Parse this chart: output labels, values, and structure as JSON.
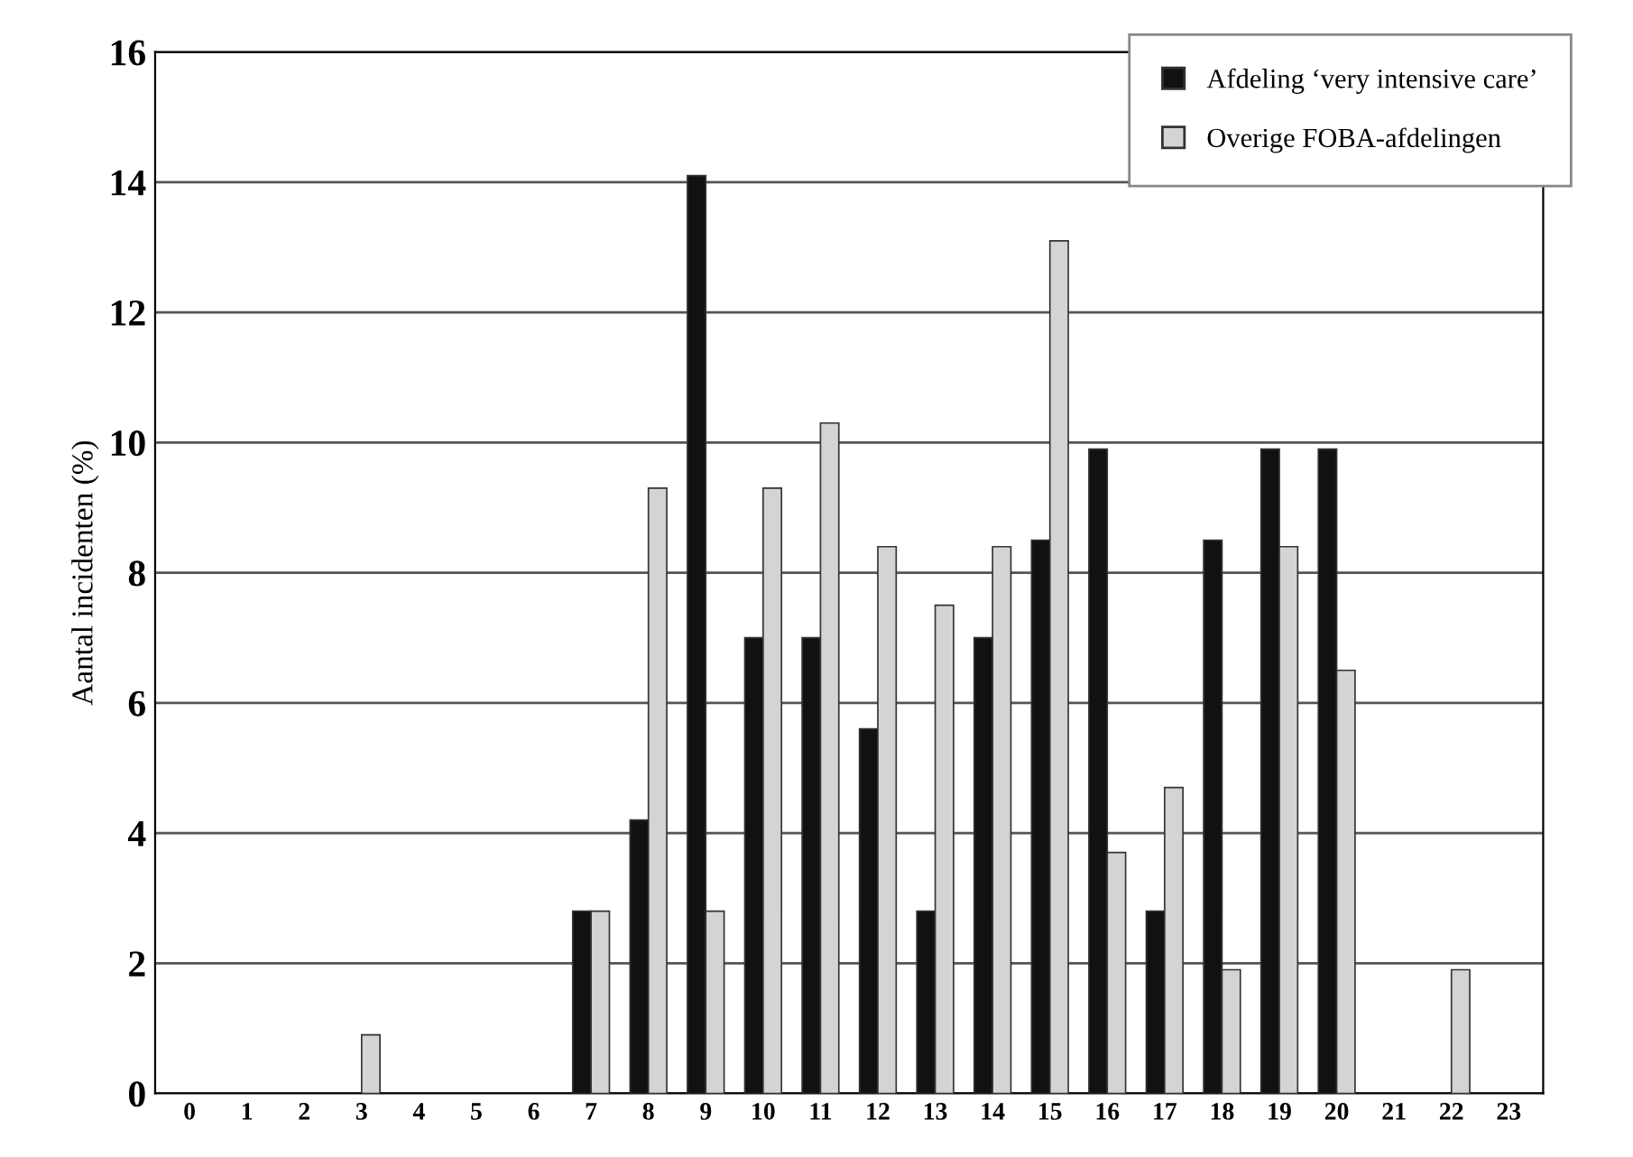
{
  "chart_data": {
    "type": "bar",
    "ylabel": "Aantal incidenten (%)",
    "categories": [
      "0",
      "1",
      "2",
      "3",
      "4",
      "5",
      "6",
      "7",
      "8",
      "9",
      "10",
      "11",
      "12",
      "13",
      "14",
      "15",
      "16",
      "17",
      "18",
      "19",
      "20",
      "21",
      "22",
      "23"
    ],
    "series": [
      {
        "name": "Afdeling ‘very intensive care’",
        "color": "#111111",
        "values": [
          0,
          0,
          0,
          0,
          0,
          0,
          0,
          2.8,
          4.2,
          14.1,
          7.0,
          7.0,
          5.6,
          2.8,
          7.0,
          8.5,
          9.9,
          2.8,
          8.5,
          9.9,
          9.9,
          0,
          0,
          0
        ]
      },
      {
        "name": "Overige FOBA-afdelingen",
        "color": "#d4d4d4",
        "values": [
          0,
          0,
          0,
          0.9,
          0,
          0,
          0,
          2.8,
          9.3,
          2.8,
          9.3,
          10.3,
          8.4,
          7.5,
          8.4,
          13.1,
          3.7,
          4.7,
          1.9,
          8.4,
          6.5,
          0,
          1.9,
          0
        ]
      }
    ],
    "ylim": [
      0,
      16
    ],
    "yticks": [
      0,
      2,
      4,
      6,
      8,
      10,
      12,
      14,
      16
    ],
    "grid": "y",
    "legend": "top right"
  }
}
